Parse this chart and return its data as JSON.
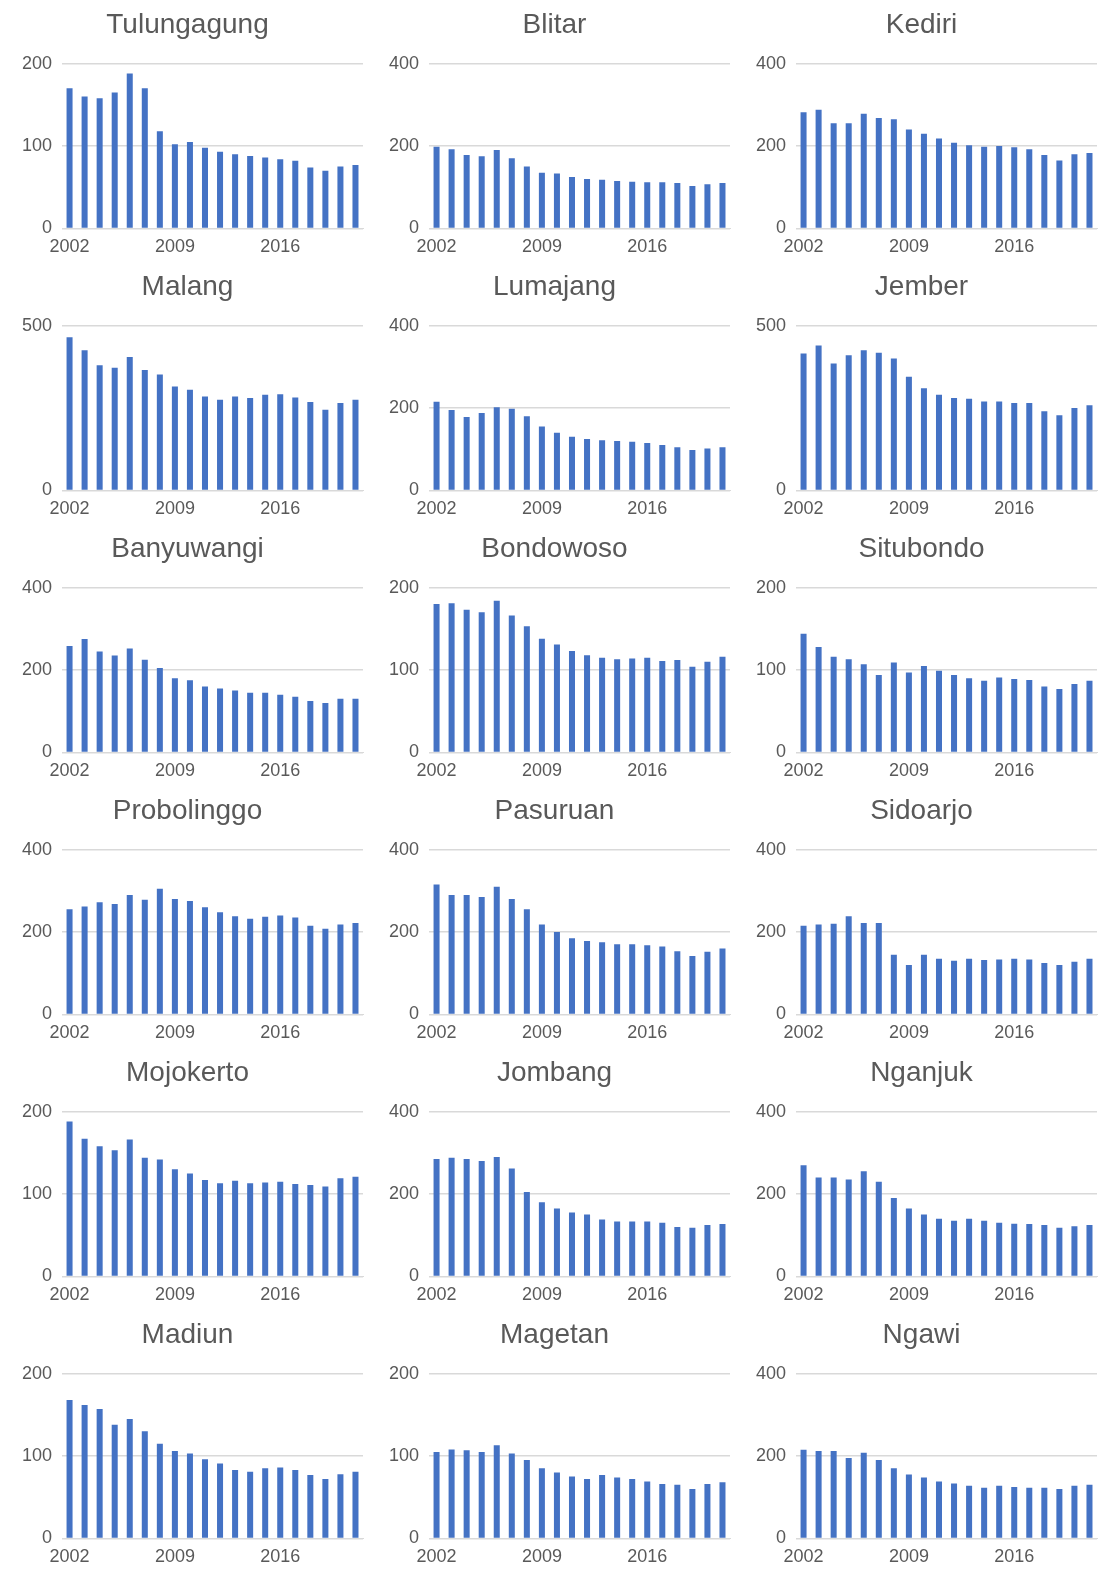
{
  "chart_data": [
    {
      "type": "bar",
      "title": "Tulungagung",
      "categories": [
        "2002",
        null,
        null,
        null,
        null,
        null,
        null,
        "2009",
        null,
        null,
        null,
        null,
        null,
        null,
        "2016",
        null,
        null,
        null,
        null,
        null
      ],
      "values": [
        170,
        160,
        158,
        165,
        188,
        170,
        118,
        102,
        105,
        98,
        93,
        90,
        88,
        86,
        84,
        82,
        74,
        70,
        75,
        77
      ],
      "color": "#4472c4",
      "ylim": [
        0,
        200
      ],
      "yticks": [
        0,
        100,
        200
      ],
      "grid": "y"
    },
    {
      "type": "bar",
      "title": "Blitar",
      "categories": [
        "2002",
        null,
        null,
        null,
        null,
        null,
        null,
        "2009",
        null,
        null,
        null,
        null,
        null,
        null,
        "2016",
        null,
        null,
        null,
        null,
        null
      ],
      "values": [
        198,
        192,
        178,
        175,
        190,
        170,
        150,
        135,
        133,
        125,
        120,
        118,
        115,
        113,
        112,
        112,
        110,
        103,
        107,
        110
      ],
      "color": "#4472c4",
      "ylim": [
        0,
        400
      ],
      "yticks": [
        0,
        200,
        400
      ],
      "grid": "y"
    },
    {
      "type": "bar",
      "title": "Kediri",
      "categories": [
        "2002",
        null,
        null,
        null,
        null,
        null,
        null,
        "2009",
        null,
        null,
        null,
        null,
        null,
        null,
        "2016",
        null,
        null,
        null,
        null,
        null
      ],
      "values": [
        282,
        288,
        255,
        255,
        278,
        268,
        265,
        240,
        230,
        218,
        208,
        202,
        198,
        200,
        197,
        192,
        178,
        165,
        180,
        183
      ],
      "color": "#4472c4",
      "ylim": [
        0,
        400
      ],
      "yticks": [
        0,
        200,
        400
      ],
      "grid": "y"
    },
    {
      "type": "bar",
      "title": "Malang",
      "categories": [
        "2002",
        null,
        null,
        null,
        null,
        null,
        null,
        "2009",
        null,
        null,
        null,
        null,
        null,
        null,
        "2016",
        null,
        null,
        null,
        null,
        null
      ],
      "values": [
        465,
        425,
        380,
        372,
        405,
        365,
        352,
        315,
        305,
        285,
        275,
        285,
        280,
        290,
        292,
        282,
        268,
        245,
        265,
        275
      ],
      "color": "#4472c4",
      "ylim": [
        0,
        500
      ],
      "yticks": [
        0,
        500
      ],
      "grid": "y"
    },
    {
      "type": "bar",
      "title": "Lumajang",
      "categories": [
        "2002",
        null,
        null,
        null,
        null,
        null,
        null,
        "2009",
        null,
        null,
        null,
        null,
        null,
        null,
        "2016",
        null,
        null,
        null,
        null,
        null
      ],
      "values": [
        215,
        195,
        178,
        188,
        202,
        198,
        180,
        155,
        140,
        130,
        125,
        122,
        120,
        118,
        115,
        110,
        105,
        98,
        102,
        105
      ],
      "color": "#4472c4",
      "ylim": [
        0,
        400
      ],
      "yticks": [
        0,
        200,
        400
      ],
      "grid": "y"
    },
    {
      "type": "bar",
      "title": "Jember",
      "categories": [
        "2002",
        null,
        null,
        null,
        null,
        null,
        null,
        "2009",
        null,
        null,
        null,
        null,
        null,
        null,
        "2016",
        null,
        null,
        null,
        null,
        null
      ],
      "values": [
        415,
        440,
        385,
        410,
        425,
        418,
        400,
        345,
        310,
        290,
        280,
        278,
        270,
        270,
        265,
        265,
        240,
        228,
        250,
        258
      ],
      "color": "#4472c4",
      "ylim": [
        0,
        500
      ],
      "yticks": [
        0,
        500
      ],
      "grid": "y"
    },
    {
      "type": "bar",
      "title": "Banyuwangi",
      "categories": [
        "2002",
        null,
        null,
        null,
        null,
        null,
        null,
        "2009",
        null,
        null,
        null,
        null,
        null,
        null,
        "2016",
        null,
        null,
        null,
        null,
        null
      ],
      "values": [
        258,
        275,
        245,
        235,
        252,
        225,
        205,
        180,
        175,
        160,
        155,
        150,
        145,
        145,
        140,
        135,
        125,
        120,
        130,
        130
      ],
      "color": "#4472c4",
      "ylim": [
        0,
        400
      ],
      "yticks": [
        0,
        200,
        400
      ],
      "grid": "y"
    },
    {
      "type": "bar",
      "title": "Bondowoso",
      "categories": [
        "2002",
        null,
        null,
        null,
        null,
        null,
        null,
        "2009",
        null,
        null,
        null,
        null,
        null,
        null,
        "2016",
        null,
        null,
        null,
        null,
        null
      ],
      "values": [
        180,
        181,
        173,
        170,
        184,
        166,
        153,
        138,
        131,
        123,
        118,
        115,
        113,
        114,
        115,
        111,
        112,
        104,
        110,
        116
      ],
      "color": "#4472c4",
      "ylim": [
        0,
        200
      ],
      "yticks": [
        0,
        100,
        200
      ],
      "grid": "y"
    },
    {
      "type": "bar",
      "title": "Situbondo",
      "categories": [
        "2002",
        null,
        null,
        null,
        null,
        null,
        null,
        "2009",
        null,
        null,
        null,
        null,
        null,
        null,
        "2016",
        null,
        null,
        null,
        null,
        null
      ],
      "values": [
        144,
        128,
        116,
        113,
        107,
        94,
        109,
        97,
        105,
        99,
        94,
        90,
        87,
        91,
        89,
        88,
        80,
        77,
        83,
        87
      ],
      "color": "#4472c4",
      "ylim": [
        0,
        200
      ],
      "yticks": [
        0,
        100,
        200
      ],
      "grid": "y"
    },
    {
      "type": "bar",
      "title": "Probolinggo",
      "categories": [
        "2002",
        null,
        null,
        null,
        null,
        null,
        null,
        "2009",
        null,
        null,
        null,
        null,
        null,
        null,
        "2016",
        null,
        null,
        null,
        null,
        null
      ],
      "values": [
        255,
        262,
        272,
        268,
        290,
        278,
        305,
        280,
        275,
        260,
        248,
        238,
        232,
        237,
        240,
        235,
        215,
        208,
        218,
        222
      ],
      "color": "#4472c4",
      "ylim": [
        0,
        400
      ],
      "yticks": [
        0,
        200,
        400
      ],
      "grid": "y"
    },
    {
      "type": "bar",
      "title": "Pasuruan",
      "categories": [
        "2002",
        null,
        null,
        null,
        null,
        null,
        null,
        "2009",
        null,
        null,
        null,
        null,
        null,
        null,
        "2016",
        null,
        null,
        null,
        null,
        null
      ],
      "values": [
        315,
        290,
        290,
        285,
        310,
        280,
        255,
        218,
        200,
        185,
        178,
        175,
        170,
        170,
        168,
        165,
        153,
        142,
        152,
        160
      ],
      "color": "#4472c4",
      "ylim": [
        0,
        400
      ],
      "yticks": [
        0,
        200,
        400
      ],
      "grid": "y"
    },
    {
      "type": "bar",
      "title": "Sidoarjo",
      "categories": [
        "2002",
        null,
        null,
        null,
        null,
        null,
        null,
        "2009",
        null,
        null,
        null,
        null,
        null,
        null,
        "2016",
        null,
        null,
        null,
        null,
        null
      ],
      "values": [
        215,
        218,
        220,
        238,
        222,
        222,
        145,
        120,
        145,
        135,
        130,
        135,
        132,
        133,
        135,
        133,
        125,
        120,
        128,
        135
      ],
      "color": "#4472c4",
      "ylim": [
        0,
        400
      ],
      "yticks": [
        0,
        200,
        400
      ],
      "grid": "y"
    },
    {
      "type": "bar",
      "title": "Mojokerto",
      "categories": [
        "2002",
        null,
        null,
        null,
        null,
        null,
        null,
        "2009",
        null,
        null,
        null,
        null,
        null,
        null,
        "2016",
        null,
        null,
        null,
        null,
        null
      ],
      "values": [
        188,
        167,
        158,
        153,
        166,
        144,
        142,
        130,
        125,
        117,
        113,
        116,
        113,
        114,
        115,
        112,
        111,
        109,
        119,
        121
      ],
      "color": "#4472c4",
      "ylim": [
        0,
        200
      ],
      "yticks": [
        0,
        100,
        200
      ],
      "grid": "y"
    },
    {
      "type": "bar",
      "title": "Jombang",
      "categories": [
        "2002",
        null,
        null,
        null,
        null,
        null,
        null,
        "2009",
        null,
        null,
        null,
        null,
        null,
        null,
        "2016",
        null,
        null,
        null,
        null,
        null
      ],
      "values": [
        285,
        288,
        285,
        280,
        290,
        262,
        205,
        180,
        165,
        155,
        150,
        138,
        133,
        133,
        133,
        130,
        120,
        118,
        125,
        127
      ],
      "color": "#4472c4",
      "ylim": [
        0,
        400
      ],
      "yticks": [
        0,
        200,
        400
      ],
      "grid": "y"
    },
    {
      "type": "bar",
      "title": "Nganjuk",
      "categories": [
        "2002",
        null,
        null,
        null,
        null,
        null,
        null,
        "2009",
        null,
        null,
        null,
        null,
        null,
        null,
        "2016",
        null,
        null,
        null,
        null,
        null
      ],
      "values": [
        270,
        240,
        240,
        235,
        255,
        230,
        190,
        165,
        150,
        140,
        135,
        140,
        135,
        130,
        128,
        127,
        125,
        118,
        122,
        125
      ],
      "color": "#4472c4",
      "ylim": [
        0,
        400
      ],
      "yticks": [
        0,
        200,
        400
      ],
      "grid": "y"
    },
    {
      "type": "bar",
      "title": "Madiun",
      "categories": [
        "2002",
        null,
        null,
        null,
        null,
        null,
        null,
        "2009",
        null,
        null,
        null,
        null,
        null,
        null,
        "2016",
        null,
        null,
        null,
        null,
        null
      ],
      "values": [
        168,
        162,
        157,
        138,
        145,
        130,
        115,
        106,
        103,
        96,
        91,
        83,
        81,
        85,
        86,
        83,
        77,
        72,
        78,
        81
      ],
      "color": "#4472c4",
      "ylim": [
        0,
        200
      ],
      "yticks": [
        0,
        100,
        200
      ],
      "grid": "y"
    },
    {
      "type": "bar",
      "title": "Magetan",
      "categories": [
        "2002",
        null,
        null,
        null,
        null,
        null,
        null,
        "2009",
        null,
        null,
        null,
        null,
        null,
        null,
        "2016",
        null,
        null,
        null,
        null,
        null
      ],
      "values": [
        105,
        108,
        107,
        105,
        113,
        103,
        95,
        85,
        80,
        75,
        72,
        77,
        74,
        72,
        69,
        66,
        65,
        60,
        66,
        68
      ],
      "color": "#4472c4",
      "ylim": [
        0,
        200
      ],
      "yticks": [
        0,
        100,
        200
      ],
      "grid": "y"
    },
    {
      "type": "bar",
      "title": "Ngawi",
      "categories": [
        "2002",
        null,
        null,
        null,
        null,
        null,
        null,
        "2009",
        null,
        null,
        null,
        null,
        null,
        null,
        "2016",
        null,
        null,
        null,
        null,
        null
      ],
      "values": [
        215,
        212,
        212,
        195,
        208,
        190,
        170,
        155,
        148,
        138,
        133,
        128,
        123,
        128,
        125,
        123,
        123,
        120,
        128,
        130
      ],
      "color": "#4472c4",
      "ylim": [
        0,
        400
      ],
      "yticks": [
        0,
        200,
        400
      ],
      "grid": "y"
    }
  ]
}
